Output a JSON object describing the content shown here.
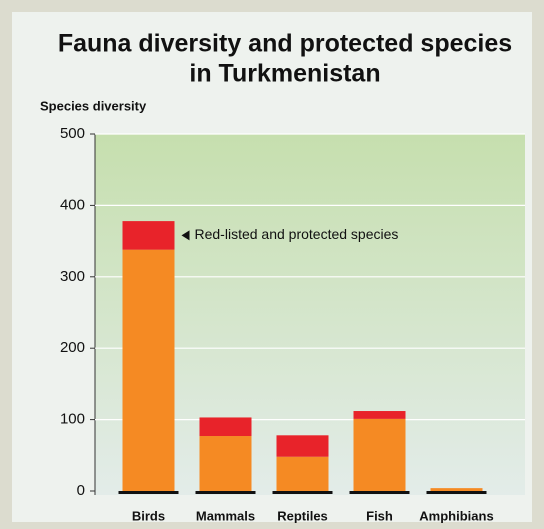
{
  "chart_data": {
    "type": "stacked_bar",
    "title": [
      "Fauna diversity and protected species",
      "in Turkmenistan"
    ],
    "y_label": "Species diversity",
    "categories": [
      "Birds",
      "Mammals",
      "Reptiles",
      "Fish",
      "Amphibians"
    ],
    "series": [
      {
        "color": "#f58a23",
        "values": [
          338,
          77,
          48,
          101,
          4
        ]
      },
      {
        "name": "Red-listed and protected species",
        "color": "#e8232a",
        "values": [
          40,
          26,
          30,
          11,
          0
        ]
      }
    ],
    "ylim": [
      0,
      500
    ],
    "yticks": [
      0,
      100,
      200,
      300,
      400,
      500
    ],
    "grid": true
  }
}
